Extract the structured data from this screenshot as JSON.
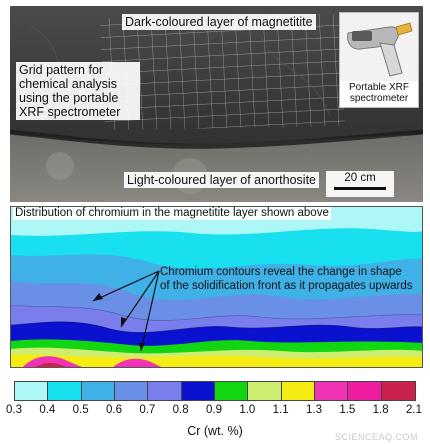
{
  "photo": {
    "top_label": "Dark-coloured layer of magnetitite",
    "left_label_lines": [
      "Grid pattern for",
      "chemical analysis",
      "using the portable",
      "XRF spectrometer"
    ],
    "bottom_label": "Light-coloured layer of anorthosite",
    "inset_caption_lines": [
      "Portable XRF",
      "spectrometer"
    ],
    "scale_text": "20 cm"
  },
  "map": {
    "title": "Distribution of chromium in the magnetitite layer shown above",
    "annotation_lines": [
      "Chromium contours reveal the change in shape",
      "of the solidification front as it propagates upwards"
    ]
  },
  "colorbar": {
    "colors": [
      "#aef7f7",
      "#19e0ef",
      "#3fb1e6",
      "#6a8fe6",
      "#7a7dec",
      "#0a12cf",
      "#11d611",
      "#cdee70",
      "#f5ec14",
      "#f033b4",
      "#ee1c9e",
      "#c9224f"
    ],
    "ticks": [
      "0.3",
      "0.4",
      "0.5",
      "0.6",
      "0.7",
      "0.8",
      "0.9",
      "1.0",
      "1.1",
      "1.3",
      "1.5",
      "1.8",
      "2.1"
    ],
    "label": "Cr (wt. %)"
  },
  "watermark": "SCIENCEAQ.COM"
}
